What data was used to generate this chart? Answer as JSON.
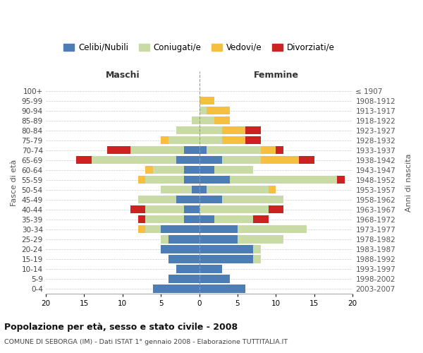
{
  "age_groups": [
    "0-4",
    "5-9",
    "10-14",
    "15-19",
    "20-24",
    "25-29",
    "30-34",
    "35-39",
    "40-44",
    "45-49",
    "50-54",
    "55-59",
    "60-64",
    "65-69",
    "70-74",
    "75-79",
    "80-84",
    "85-89",
    "90-94",
    "95-99",
    "100+"
  ],
  "birth_years": [
    "2003-2007",
    "1998-2002",
    "1993-1997",
    "1988-1992",
    "1983-1987",
    "1978-1982",
    "1973-1977",
    "1968-1972",
    "1963-1967",
    "1958-1962",
    "1953-1957",
    "1948-1952",
    "1943-1947",
    "1938-1942",
    "1933-1937",
    "1928-1932",
    "1923-1927",
    "1918-1922",
    "1913-1917",
    "1908-1912",
    "≤ 1907"
  ],
  "maschi": {
    "celibi": [
      6,
      4,
      3,
      4,
      5,
      4,
      5,
      2,
      2,
      3,
      1,
      2,
      2,
      3,
      2,
      0,
      0,
      0,
      0,
      0,
      0
    ],
    "coniugati": [
      0,
      0,
      0,
      0,
      0,
      1,
      2,
      5,
      5,
      5,
      4,
      5,
      4,
      11,
      7,
      4,
      3,
      1,
      0,
      0,
      0
    ],
    "vedovi": [
      0,
      0,
      0,
      0,
      0,
      0,
      1,
      0,
      0,
      0,
      0,
      1,
      1,
      0,
      0,
      1,
      0,
      0,
      0,
      0,
      0
    ],
    "divorziati": [
      0,
      0,
      0,
      0,
      0,
      0,
      0,
      1,
      2,
      0,
      0,
      0,
      0,
      2,
      3,
      0,
      0,
      0,
      0,
      0,
      0
    ]
  },
  "femmine": {
    "nubili": [
      6,
      4,
      3,
      7,
      7,
      5,
      5,
      2,
      0,
      3,
      1,
      4,
      2,
      3,
      1,
      0,
      0,
      0,
      0,
      0,
      0
    ],
    "coniugate": [
      0,
      0,
      0,
      1,
      1,
      6,
      9,
      5,
      9,
      8,
      8,
      14,
      5,
      5,
      7,
      3,
      3,
      2,
      1,
      0,
      0
    ],
    "vedove": [
      0,
      0,
      0,
      0,
      0,
      0,
      0,
      0,
      0,
      0,
      1,
      0,
      0,
      5,
      2,
      3,
      3,
      2,
      3,
      2,
      0
    ],
    "divorziate": [
      0,
      0,
      0,
      0,
      0,
      0,
      0,
      2,
      2,
      0,
      0,
      1,
      0,
      2,
      1,
      2,
      2,
      0,
      0,
      0,
      0
    ]
  },
  "colors": {
    "celibi": "#4d7db5",
    "coniugati": "#c8dba4",
    "vedovi": "#f5c040",
    "divorziati": "#cc2222"
  },
  "legend_labels": [
    "Celibi/Nubili",
    "Coniugati/e",
    "Vedovi/e",
    "Divorziati/e"
  ],
  "title1": "Popolazione per età, sesso e stato civile - 2008",
  "title2": "COMUNE DI SEBORGA (IM) - Dati ISTAT 1° gennaio 2008 - Elaborazione TUTTITALIA.IT",
  "xlabel_left": "Maschi",
  "xlabel_right": "Femmine",
  "ylabel_left": "Fasce di età",
  "ylabel_right": "Anni di nascita",
  "xlim": 20,
  "xticks": [
    -20,
    -15,
    -10,
    -5,
    0,
    5,
    10,
    15,
    20
  ]
}
